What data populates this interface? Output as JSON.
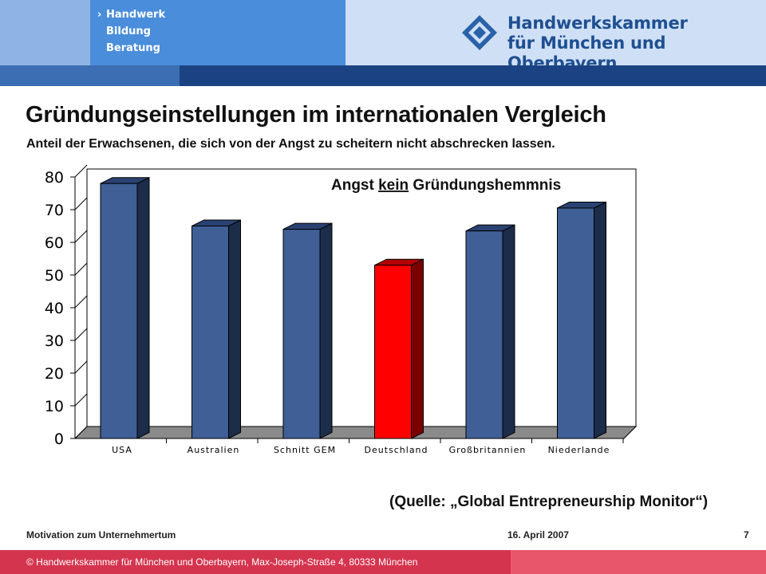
{
  "header": {
    "nav": [
      "Handwerk",
      "Bildung",
      "Beratung"
    ],
    "nav_marker": "›",
    "org_line1": "Handwerkskammer",
    "org_line2": "für München und Oberbayern",
    "colors": {
      "accent": "#4a8ddb",
      "brand": "#1b4383",
      "footer": "#d5344f"
    }
  },
  "title": "Gründungseinstellungen im internationalen Vergleich",
  "subtitle": "Anteil der Erwachsenen, die sich von der Angst zu scheitern nicht abschrecken lassen.",
  "chart_data": {
    "type": "bar",
    "categories": [
      "USA",
      "Australien",
      "Schnitt GEM",
      "Deutschland",
      "Großbritannien",
      "Niederlande"
    ],
    "values": [
      78,
      65,
      64,
      53,
      63.5,
      70.5
    ],
    "annotation_prefix": "Angst ",
    "annotation_emph": "kein",
    "annotation_suffix": " Gründungshemmnis",
    "ylim": [
      0,
      80
    ],
    "yticks": [
      "0",
      "10",
      "20",
      "30",
      "40",
      "50",
      "60",
      "70",
      "80"
    ],
    "highlight_index": 3,
    "colors": {
      "bar": "#3f5f96",
      "highlight": "#ff0000"
    },
    "xlabel": "",
    "ylabel": "",
    "grid": false
  },
  "source": "(Quelle: „Global Entrepreneurship Monitor“)",
  "footer": {
    "topic": "Motivation zum Unternehmertum",
    "date": "16. April 2007",
    "page": "7",
    "copyright": "© Handwerkskammer für München und Oberbayern, Max-Joseph-Straße 4, 80333 München"
  }
}
